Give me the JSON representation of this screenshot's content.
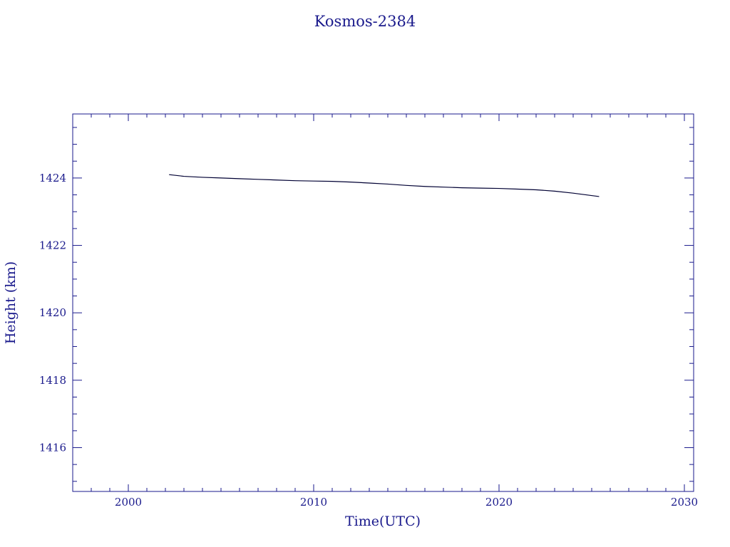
{
  "chart_data": {
    "type": "line",
    "title": "Kosmos-2384",
    "xlabel": "Time(UTC)",
    "ylabel": "Height (km)",
    "xlim": [
      1997,
      2030.5
    ],
    "ylim": [
      1414.7,
      1425.9
    ],
    "x_ticks": [
      2000,
      2010,
      2020,
      2030
    ],
    "x_tick_labels": [
      "2000",
      "2010",
      "2020",
      "2030"
    ],
    "y_ticks": [
      1416,
      1418,
      1420,
      1422,
      1424
    ],
    "y_tick_labels": [
      "1416",
      "1418",
      "1420",
      "1422",
      "1424"
    ],
    "grid": false,
    "colors": {
      "axis": "#1a1a8c",
      "line": "#000033",
      "text": "#1a1a8c"
    },
    "series": [
      {
        "x": [
          2002.2,
          2003,
          2004,
          2005,
          2006,
          2007,
          2008,
          2009,
          2010,
          2011,
          2012,
          2013,
          2014,
          2015,
          2016,
          2017,
          2018,
          2019,
          2020,
          2021,
          2022,
          2023,
          2024,
          2025.4
        ],
        "y": [
          1424.1,
          1424.05,
          1424.02,
          1424.0,
          1423.98,
          1423.96,
          1423.94,
          1423.92,
          1423.91,
          1423.9,
          1423.88,
          1423.85,
          1423.82,
          1423.78,
          1423.75,
          1423.73,
          1423.71,
          1423.7,
          1423.69,
          1423.67,
          1423.65,
          1423.61,
          1423.55,
          1423.45
        ]
      }
    ]
  }
}
